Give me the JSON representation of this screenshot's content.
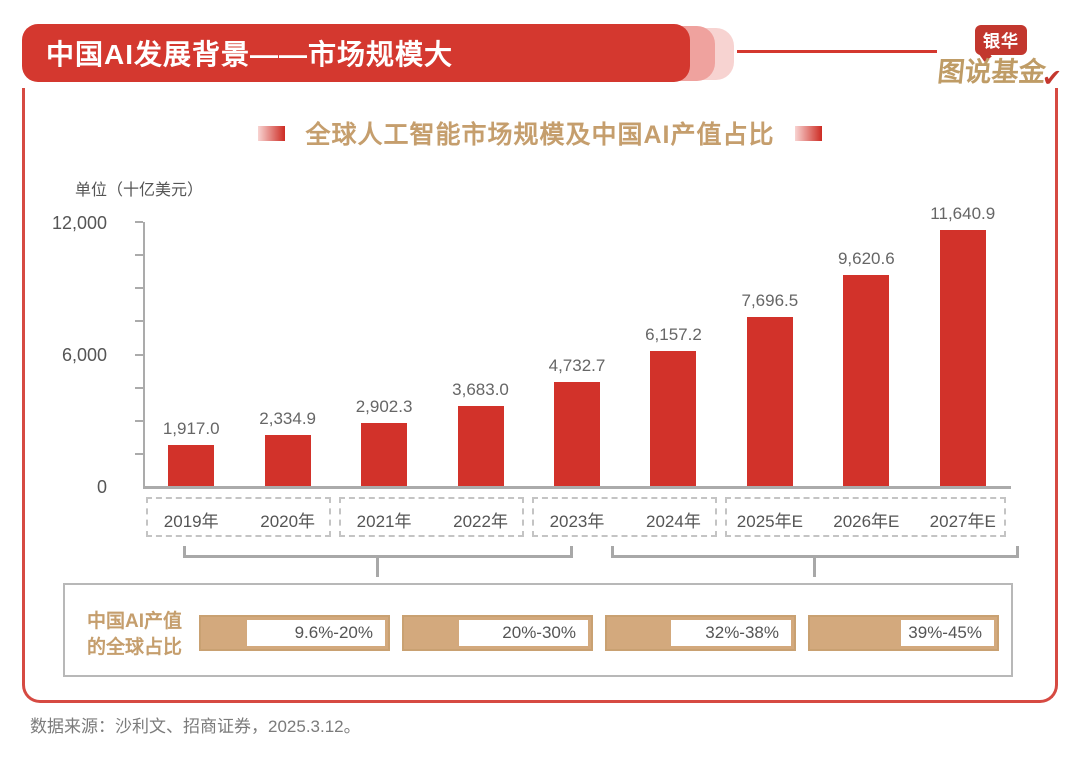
{
  "header": {
    "title": "中国AI发展背景——市场规模大"
  },
  "logo": {
    "badge": "银华",
    "name": "图说基金",
    "check_icon": "✔"
  },
  "chart": {
    "title": "全球人工智能市场规模及中国AI产值占比",
    "unit_label": "单位（十亿美元）",
    "y_axis_labels": [
      "12,000",
      "6,000",
      "0"
    ]
  },
  "chart_data": {
    "type": "bar",
    "title": "全球人工智能市场规模及中国AI产值占比",
    "unit": "十亿美元",
    "categories": [
      "2019年",
      "2020年",
      "2021年",
      "2022年",
      "2023年",
      "2024年",
      "2025年E",
      "2026年E",
      "2027年E"
    ],
    "values": [
      1917.0,
      2334.9,
      2902.3,
      3683.0,
      4732.7,
      6157.2,
      7696.5,
      9620.6,
      11640.9
    ],
    "value_labels": [
      "1,917.0",
      "2,334.9",
      "2,902.3",
      "3,683.0",
      "4,732.7",
      "6,157.2",
      "7,696.5",
      "9,620.6",
      "11,640.9"
    ],
    "ylim": [
      0,
      12000
    ],
    "y_major_ticks": [
      0,
      6000,
      12000
    ],
    "y_minor_step": 1500,
    "grid": false,
    "legend": "none",
    "bar_color": "#d2322a",
    "year_groups": [
      {
        "start_col": 0,
        "end_col": 1
      },
      {
        "start_col": 2,
        "end_col": 3
      },
      {
        "start_col": 4,
        "end_col": 5
      },
      {
        "start_col": 6,
        "end_col": 8
      }
    ],
    "china_share": {
      "row_title_line1": "中国AI产值",
      "row_title_line2": "的全球占比",
      "ranges": [
        {
          "label": "9.6%-20%",
          "fill_pct": 26
        },
        {
          "label": "20%-30%",
          "fill_pct": 31
        },
        {
          "label": "32%-38%",
          "fill_pct": 36
        },
        {
          "label": "39%-45%",
          "fill_pct": 50
        }
      ]
    }
  },
  "footer": {
    "source": "数据来源：沙利文、招商证券，2025.3.12。"
  },
  "colors": {
    "primary_red": "#d4382f",
    "bar_red": "#d2322a",
    "gold": "#c59e6d",
    "tan_fill": "#d3a97d",
    "axis_gray": "#ababab",
    "text_gray": "#555555"
  }
}
